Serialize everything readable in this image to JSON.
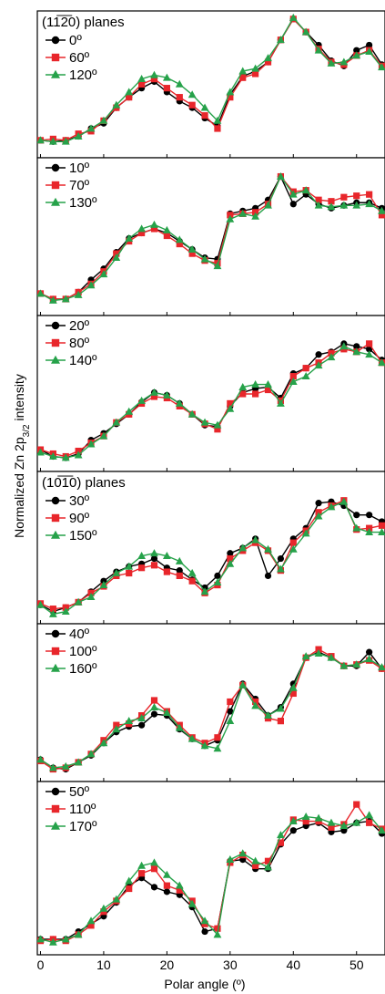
{
  "figure": {
    "ylabel": "Normalized Zn 2p3/2 intensity",
    "xlabel": "Polar angle (º)",
    "xticks": [
      "0",
      "10",
      "20",
      "30",
      "40",
      "50"
    ],
    "xlim": [
      -0.5,
      54.5
    ]
  },
  "colors": {
    "black": "#000000",
    "red": "#e8262b",
    "green": "#26a24a"
  },
  "chart_data": [
    {
      "type": "line",
      "title": "(11̅2̅0) planes",
      "x": [
        0,
        2,
        4,
        6,
        8,
        10,
        12,
        14,
        16,
        18,
        20,
        22,
        24,
        26,
        28,
        30,
        32,
        34,
        36,
        38,
        40,
        42,
        44,
        46,
        48,
        50,
        52,
        54
      ],
      "series": [
        {
          "name": "0º",
          "color": "black",
          "values": [
            0.05,
            0.04,
            0.05,
            0.08,
            0.14,
            0.18,
            0.3,
            0.38,
            0.45,
            0.5,
            0.42,
            0.35,
            0.3,
            0.22,
            0.16,
            0.4,
            0.54,
            0.58,
            0.65,
            0.82,
            0.98,
            0.88,
            0.78,
            0.66,
            0.62,
            0.74,
            0.78,
            0.63
          ]
        },
        {
          "name": "60º",
          "color": "red",
          "values": [
            0.05,
            0.06,
            0.05,
            0.1,
            0.12,
            0.2,
            0.3,
            0.38,
            0.48,
            0.52,
            0.45,
            0.38,
            0.32,
            0.24,
            0.14,
            0.38,
            0.53,
            0.56,
            0.65,
            0.82,
            0.98,
            0.88,
            0.75,
            0.65,
            0.63,
            0.7,
            0.74,
            0.62
          ]
        },
        {
          "name": "120º",
          "color": "green",
          "values": [
            0.05,
            0.04,
            0.04,
            0.08,
            0.14,
            0.2,
            0.32,
            0.42,
            0.52,
            0.55,
            0.53,
            0.48,
            0.4,
            0.3,
            0.2,
            0.42,
            0.58,
            0.6,
            0.68,
            0.82,
            0.99,
            0.88,
            0.74,
            0.64,
            0.65,
            0.7,
            0.73,
            0.61
          ]
        }
      ]
    },
    {
      "type": "line",
      "x": [
        0,
        2,
        4,
        6,
        8,
        10,
        12,
        14,
        16,
        18,
        20,
        22,
        24,
        26,
        28,
        30,
        32,
        34,
        36,
        38,
        40,
        42,
        44,
        46,
        48,
        50,
        52,
        54
      ],
      "series": [
        {
          "name": "10º",
          "color": "black",
          "values": [
            0.08,
            0.04,
            0.04,
            0.09,
            0.18,
            0.26,
            0.38,
            0.48,
            0.52,
            0.55,
            0.52,
            0.46,
            0.4,
            0.34,
            0.33,
            0.66,
            0.68,
            0.7,
            0.76,
            0.93,
            0.73,
            0.8,
            0.73,
            0.7,
            0.72,
            0.74,
            0.74,
            0.7
          ]
        },
        {
          "name": "70º",
          "color": "red",
          "values": [
            0.08,
            0.04,
            0.04,
            0.09,
            0.15,
            0.24,
            0.37,
            0.46,
            0.52,
            0.55,
            0.5,
            0.44,
            0.37,
            0.32,
            0.3,
            0.65,
            0.66,
            0.67,
            0.73,
            0.93,
            0.82,
            0.83,
            0.76,
            0.75,
            0.78,
            0.79,
            0.8,
            0.65
          ]
        },
        {
          "name": "130º",
          "color": "green",
          "values": [
            0.08,
            0.03,
            0.04,
            0.07,
            0.14,
            0.22,
            0.34,
            0.48,
            0.55,
            0.58,
            0.54,
            0.47,
            0.4,
            0.33,
            0.28,
            0.62,
            0.66,
            0.64,
            0.72,
            0.93,
            0.8,
            0.83,
            0.72,
            0.71,
            0.72,
            0.72,
            0.73,
            0.68
          ]
        }
      ]
    },
    {
      "type": "line",
      "x": [
        0,
        2,
        4,
        6,
        8,
        10,
        12,
        14,
        16,
        18,
        20,
        22,
        24,
        26,
        28,
        30,
        32,
        34,
        36,
        38,
        40,
        42,
        44,
        46,
        48,
        50,
        52,
        54
      ],
      "series": [
        {
          "name": "20º",
          "color": "black",
          "values": [
            0.08,
            0.03,
            0.02,
            0.05,
            0.15,
            0.2,
            0.27,
            0.34,
            0.43,
            0.5,
            0.48,
            0.42,
            0.34,
            0.26,
            0.25,
            0.4,
            0.5,
            0.53,
            0.54,
            0.46,
            0.64,
            0.68,
            0.78,
            0.8,
            0.86,
            0.84,
            0.82,
            0.74
          ]
        },
        {
          "name": "80º",
          "color": "red",
          "values": [
            0.08,
            0.05,
            0.03,
            0.07,
            0.13,
            0.18,
            0.28,
            0.34,
            0.42,
            0.47,
            0.46,
            0.4,
            0.34,
            0.27,
            0.23,
            0.42,
            0.49,
            0.49,
            0.52,
            0.44,
            0.62,
            0.68,
            0.72,
            0.79,
            0.82,
            0.8,
            0.86,
            0.72
          ]
        },
        {
          "name": "140º",
          "color": "green",
          "values": [
            0.06,
            0.03,
            0.02,
            0.04,
            0.12,
            0.18,
            0.28,
            0.36,
            0.44,
            0.5,
            0.48,
            0.42,
            0.34,
            0.28,
            0.26,
            0.38,
            0.54,
            0.56,
            0.56,
            0.42,
            0.58,
            0.62,
            0.7,
            0.76,
            0.84,
            0.8,
            0.78,
            0.72
          ]
        }
      ]
    },
    {
      "type": "line",
      "title": "(10̅1̅0) planes",
      "x": [
        0,
        2,
        4,
        6,
        8,
        10,
        12,
        14,
        16,
        18,
        20,
        22,
        24,
        26,
        28,
        30,
        32,
        34,
        36,
        38,
        40,
        42,
        44,
        46,
        48,
        50,
        52,
        54
      ],
      "series": [
        {
          "name": "30º",
          "color": "black",
          "values": [
            0.06,
            0.01,
            0.04,
            0.08,
            0.16,
            0.24,
            0.31,
            0.35,
            0.37,
            0.41,
            0.34,
            0.32,
            0.25,
            0.19,
            0.28,
            0.45,
            0.49,
            0.56,
            0.28,
            0.41,
            0.56,
            0.64,
            0.83,
            0.84,
            0.81,
            0.74,
            0.74,
            0.69
          ]
        },
        {
          "name": "90º",
          "color": "red",
          "values": [
            0.07,
            0.03,
            0.04,
            0.08,
            0.15,
            0.2,
            0.28,
            0.3,
            0.34,
            0.36,
            0.31,
            0.28,
            0.24,
            0.15,
            0.21,
            0.41,
            0.47,
            0.53,
            0.47,
            0.32,
            0.53,
            0.62,
            0.76,
            0.81,
            0.85,
            0.63,
            0.64,
            0.66
          ]
        },
        {
          "name": "150º",
          "color": "green",
          "values": [
            0.06,
            -0.01,
            0.01,
            0.08,
            0.12,
            0.21,
            0.3,
            0.35,
            0.43,
            0.45,
            0.43,
            0.39,
            0.3,
            0.16,
            0.23,
            0.37,
            0.49,
            0.55,
            0.48,
            0.33,
            0.48,
            0.6,
            0.73,
            0.8,
            0.84,
            0.64,
            0.61,
            0.61
          ]
        }
      ]
    },
    {
      "type": "line",
      "x": [
        0,
        2,
        4,
        6,
        8,
        10,
        12,
        14,
        16,
        18,
        20,
        22,
        24,
        26,
        28,
        30,
        32,
        34,
        36,
        38,
        40,
        42,
        44,
        46,
        48,
        50,
        52,
        54
      ],
      "series": [
        {
          "name": "40º",
          "color": "black",
          "values": [
            0.08,
            0.02,
            0.01,
            0.06,
            0.11,
            0.2,
            0.28,
            0.32,
            0.33,
            0.41,
            0.4,
            0.3,
            0.23,
            0.18,
            0.22,
            0.43,
            0.63,
            0.52,
            0.4,
            0.46,
            0.63,
            0.82,
            0.86,
            0.82,
            0.76,
            0.76,
            0.86,
            0.74
          ]
        },
        {
          "name": "100º",
          "color": "red",
          "values": [
            0.07,
            0.01,
            0.02,
            0.06,
            0.12,
            0.22,
            0.33,
            0.34,
            0.4,
            0.51,
            0.43,
            0.33,
            0.24,
            0.2,
            0.24,
            0.5,
            0.62,
            0.5,
            0.38,
            0.36,
            0.56,
            0.82,
            0.88,
            0.83,
            0.76,
            0.77,
            0.8,
            0.74
          ]
        },
        {
          "name": "160º",
          "color": "green",
          "values": [
            0.08,
            0.02,
            0.03,
            0.06,
            0.12,
            0.2,
            0.3,
            0.36,
            0.38,
            0.46,
            0.42,
            0.31,
            0.23,
            0.18,
            0.16,
            0.36,
            0.62,
            0.47,
            0.4,
            0.45,
            0.6,
            0.83,
            0.85,
            0.82,
            0.76,
            0.77,
            0.81,
            0.75
          ]
        }
      ]
    },
    {
      "type": "line",
      "x": [
        0,
        2,
        4,
        6,
        8,
        10,
        12,
        14,
        16,
        18,
        20,
        22,
        24,
        26,
        28,
        30,
        32,
        34,
        36,
        38,
        40,
        42,
        44,
        46,
        48,
        50,
        52,
        54
      ],
      "series": [
        {
          "name": "50º",
          "color": "black",
          "values": [
            0.03,
            0.03,
            0.03,
            0.08,
            0.13,
            0.18,
            0.27,
            0.38,
            0.43,
            0.37,
            0.34,
            0.32,
            0.24,
            0.08,
            0.1,
            0.54,
            0.55,
            0.49,
            0.49,
            0.65,
            0.74,
            0.77,
            0.79,
            0.73,
            0.74,
            0.79,
            0.8,
            0.72
          ]
        },
        {
          "name": "110º",
          "color": "red",
          "values": [
            0.02,
            0.03,
            0.02,
            0.06,
            0.12,
            0.21,
            0.28,
            0.36,
            0.46,
            0.49,
            0.38,
            0.35,
            0.28,
            0.13,
            0.1,
            0.53,
            0.58,
            0.51,
            0.54,
            0.66,
            0.81,
            0.8,
            0.8,
            0.76,
            0.78,
            0.91,
            0.79,
            0.75
          ]
        },
        {
          "name": "170º",
          "color": "green",
          "values": [
            0.03,
            0.01,
            0.03,
            0.06,
            0.15,
            0.23,
            0.29,
            0.41,
            0.51,
            0.53,
            0.45,
            0.38,
            0.26,
            0.15,
            0.06,
            0.55,
            0.59,
            0.54,
            0.5,
            0.71,
            0.8,
            0.83,
            0.82,
            0.79,
            0.77,
            0.79,
            0.84,
            0.74
          ]
        }
      ]
    }
  ]
}
